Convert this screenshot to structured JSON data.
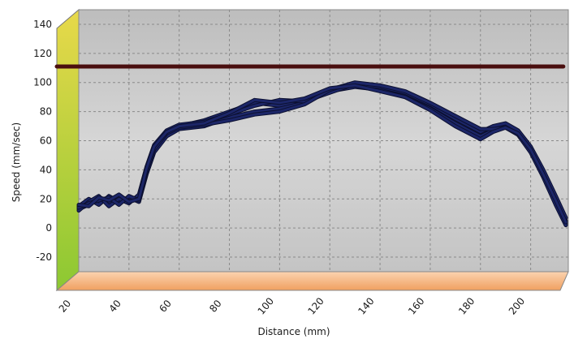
{
  "chart_data": {
    "type": "line",
    "title": "",
    "xlabel": "Distance (mm)",
    "ylabel": "Speed (mm/sec)",
    "xlim": [
      20,
      215
    ],
    "ylim": [
      -30,
      150
    ],
    "x_ticks": [
      20,
      40,
      60,
      80,
      100,
      120,
      140,
      160,
      180,
      200
    ],
    "x_tick_labels": [
      "20",
      "40",
      "60",
      "80",
      "100",
      "120",
      "140",
      "160",
      "180",
      "200"
    ],
    "y_ticks": [
      -20,
      0,
      20,
      40,
      60,
      80,
      100,
      120,
      140
    ],
    "y_tick_labels": [
      "-20",
      "0",
      "20",
      "40",
      "60",
      "80",
      "100",
      "120",
      "140"
    ],
    "grid": true,
    "style": "3d",
    "colors": {
      "series": "#1c2668",
      "limit": "#4a0f0f",
      "left_wall": "#a8d02c",
      "floor": "#f6b37e",
      "back_wall": "#cfcfcf",
      "frame": "#8c8c8c"
    },
    "reference_line": {
      "y": 111
    },
    "series": [
      {
        "x": [
          20,
          24,
          28,
          32,
          36,
          40,
          44,
          47,
          50,
          55,
          60,
          70,
          80,
          90,
          100,
          110,
          120,
          130,
          140,
          150,
          160,
          170,
          180,
          185,
          190,
          195,
          200,
          205,
          210,
          214
        ],
        "values": [
          13,
          16,
          20,
          17,
          22,
          19,
          21,
          40,
          55,
          66,
          70,
          74,
          80,
          86,
          84,
          88,
          95,
          98,
          96,
          92,
          84,
          74,
          65,
          69,
          71,
          66,
          55,
          38,
          20,
          5
        ]
      },
      {
        "x": [
          20,
          24,
          28,
          32,
          36,
          40,
          44,
          47,
          50,
          55,
          60,
          70,
          80,
          90,
          100,
          110,
          120,
          130,
          140,
          150,
          160,
          170,
          180,
          185,
          190,
          195,
          200,
          205,
          210,
          214
        ],
        "values": [
          15,
          20,
          16,
          22,
          18,
          21,
          18,
          37,
          52,
          63,
          68,
          70,
          76,
          80,
          82,
          86,
          94,
          97,
          95,
          90,
          82,
          72,
          63,
          67,
          70,
          65,
          53,
          36,
          18,
          3
        ]
      },
      {
        "x": [
          20,
          24,
          28,
          32,
          36,
          40,
          44,
          47,
          50,
          55,
          60,
          70,
          80,
          90,
          100,
          110,
          120,
          130,
          140,
          150,
          160,
          170,
          180,
          185,
          190,
          195,
          200,
          205,
          210,
          214
        ],
        "values": [
          12,
          18,
          22,
          15,
          20,
          17,
          23,
          42,
          57,
          67,
          71,
          73,
          78,
          84,
          88,
          87,
          93,
          99,
          97,
          93,
          85,
          75,
          66,
          70,
          72,
          67,
          56,
          40,
          22,
          7
        ]
      },
      {
        "x": [
          20,
          24,
          28,
          32,
          36,
          40,
          44,
          47,
          50,
          55,
          60,
          70,
          80,
          90,
          100,
          110,
          120,
          130,
          140,
          150,
          160,
          170,
          180,
          185,
          190,
          195,
          200,
          205,
          210,
          214
        ],
        "values": [
          14,
          17,
          19,
          21,
          16,
          22,
          19,
          39,
          54,
          65,
          69,
          71,
          74,
          78,
          80,
          85,
          95,
          100,
          98,
          94,
          86,
          77,
          68,
          68,
          69,
          64,
          52,
          35,
          16,
          2
        ]
      },
      {
        "x": [
          20,
          24,
          28,
          32,
          36,
          40,
          44,
          47,
          50,
          55,
          60,
          70,
          80,
          90,
          100,
          110,
          120,
          130,
          140,
          150,
          160,
          170,
          180,
          185,
          190,
          195,
          200,
          205,
          210,
          214
        ],
        "values": [
          16,
          15,
          21,
          19,
          23,
          18,
          20,
          41,
          56,
          66,
          70,
          72,
          79,
          88,
          86,
          89,
          96,
          98,
          94,
          90,
          81,
          70,
          61,
          66,
          69,
          65,
          54,
          37,
          19,
          4
        ]
      }
    ]
  }
}
